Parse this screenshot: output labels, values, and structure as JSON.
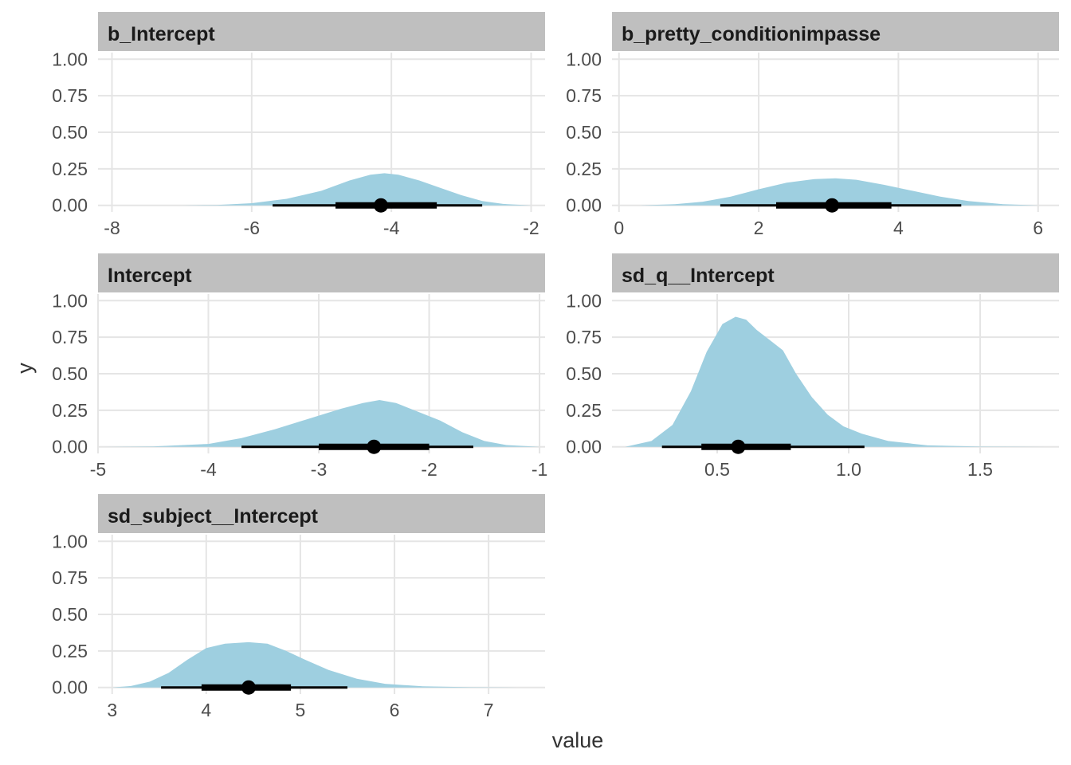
{
  "axis_titles": {
    "x": "value",
    "y": "y"
  },
  "colors": {
    "density_fill": "#9ecfe0",
    "strip_bg": "#bfbfbf",
    "grid": "#e5e5e5",
    "interval": "#000000"
  },
  "chart_data": [
    {
      "type": "area",
      "title": "b_Intercept",
      "xlim": [
        -8.2,
        -1.8
      ],
      "ylim": [
        0,
        1.0
      ],
      "xticks": [
        -8,
        -6,
        -4,
        -2
      ],
      "xtick_labels": [
        "-8",
        "-6",
        "-4",
        "-2"
      ],
      "yticks": [
        0,
        0.25,
        0.5,
        0.75,
        1.0
      ],
      "ytick_labels": [
        "0.00",
        "0.25",
        "0.50",
        "0.75",
        "1.00"
      ],
      "density": {
        "x": [
          -7.0,
          -6.5,
          -6.0,
          -5.5,
          -5.0,
          -4.6,
          -4.3,
          -4.1,
          -3.9,
          -3.6,
          -3.3,
          -3.0,
          -2.7,
          -2.4,
          -2.0
        ],
        "y": [
          0.0,
          0.003,
          0.015,
          0.045,
          0.1,
          0.17,
          0.21,
          0.22,
          0.21,
          0.17,
          0.12,
          0.07,
          0.03,
          0.01,
          0.0
        ]
      },
      "point": -4.15,
      "interval_inner": [
        -4.8,
        -3.35
      ],
      "interval_outer": [
        -5.7,
        -2.7
      ]
    },
    {
      "type": "area",
      "title": "b_pretty_conditionimpasse",
      "xlim": [
        -0.1,
        6.3
      ],
      "ylim": [
        0,
        1.0
      ],
      "xticks": [
        0,
        2,
        4,
        6
      ],
      "xtick_labels": [
        "0",
        "2",
        "4",
        "6"
      ],
      "yticks": [
        0,
        0.25,
        0.5,
        0.75,
        1.0
      ],
      "ytick_labels": [
        "0.00",
        "0.25",
        "0.50",
        "0.75",
        "1.00"
      ],
      "density": {
        "x": [
          0.3,
          0.8,
          1.2,
          1.6,
          2.0,
          2.4,
          2.8,
          3.1,
          3.4,
          3.8,
          4.2,
          4.6,
          5.0,
          5.5,
          6.0
        ],
        "y": [
          0.0,
          0.008,
          0.025,
          0.06,
          0.11,
          0.155,
          0.18,
          0.185,
          0.175,
          0.14,
          0.1,
          0.06,
          0.03,
          0.008,
          0.0
        ]
      },
      "point": 3.05,
      "interval_inner": [
        2.25,
        3.9
      ],
      "interval_outer": [
        1.45,
        4.9
      ]
    },
    {
      "type": "area",
      "title": "Intercept",
      "xlim": [
        -5.0,
        -0.95
      ],
      "ylim": [
        0,
        1.0
      ],
      "xticks": [
        -5,
        -4,
        -3,
        -2,
        -1
      ],
      "xtick_labels": [
        "-5",
        "-4",
        "-3",
        "-2",
        "-1"
      ],
      "density": {
        "x": [
          -4.95,
          -4.5,
          -4.0,
          -3.7,
          -3.4,
          -3.1,
          -2.8,
          -2.6,
          -2.45,
          -2.3,
          -2.1,
          -1.9,
          -1.7,
          -1.5,
          -1.3,
          -1.0
        ],
        "y": [
          0.0,
          0.003,
          0.02,
          0.06,
          0.12,
          0.19,
          0.26,
          0.3,
          0.32,
          0.3,
          0.24,
          0.18,
          0.1,
          0.04,
          0.012,
          0.0
        ]
      },
      "yticks": [
        0,
        0.25,
        0.5,
        0.75,
        1.0
      ],
      "ytick_labels": [
        "0.00",
        "0.25",
        "0.50",
        "0.75",
        "1.00"
      ],
      "point": -2.5,
      "interval_inner": [
        -3.0,
        -2.0
      ],
      "interval_outer": [
        -3.7,
        -1.6
      ]
    },
    {
      "type": "area",
      "title": "sd_q__Intercept",
      "xlim": [
        0.1,
        1.8
      ],
      "ylim": [
        0,
        1.0
      ],
      "xticks": [
        0.5,
        1.0,
        1.5
      ],
      "xtick_labels": [
        "0.5",
        "1.0",
        "1.5"
      ],
      "yticks": [
        0,
        0.25,
        0.5,
        0.75,
        1.0
      ],
      "ytick_labels": [
        "0.00",
        "0.25",
        "0.50",
        "0.75",
        "1.00"
      ],
      "density": {
        "x": [
          0.15,
          0.25,
          0.33,
          0.4,
          0.46,
          0.52,
          0.57,
          0.61,
          0.65,
          0.7,
          0.75,
          0.8,
          0.86,
          0.92,
          0.98,
          1.05,
          1.15,
          1.3,
          1.5,
          1.75
        ],
        "y": [
          0.0,
          0.04,
          0.15,
          0.38,
          0.65,
          0.84,
          0.89,
          0.87,
          0.8,
          0.73,
          0.66,
          0.5,
          0.34,
          0.22,
          0.14,
          0.09,
          0.04,
          0.01,
          0.002,
          0.0
        ]
      },
      "point": 0.58,
      "interval_inner": [
        0.44,
        0.78
      ],
      "interval_outer": [
        0.29,
        1.06
      ]
    },
    {
      "type": "area",
      "title": "sd_subject__Intercept",
      "xlim": [
        2.85,
        7.6
      ],
      "ylim": [
        0,
        1.0
      ],
      "xticks": [
        3,
        4,
        5,
        6,
        7
      ],
      "xtick_labels": [
        "3",
        "4",
        "5",
        "6",
        "7"
      ],
      "yticks": [
        0,
        0.25,
        0.5,
        0.75,
        1.0
      ],
      "ytick_labels": [
        "0.00",
        "0.25",
        "0.50",
        "0.75",
        "1.00"
      ],
      "density": {
        "x": [
          3.0,
          3.2,
          3.4,
          3.6,
          3.8,
          4.0,
          4.2,
          4.45,
          4.65,
          4.85,
          5.05,
          5.3,
          5.6,
          5.9,
          6.3,
          6.8,
          7.3
        ],
        "y": [
          0.0,
          0.01,
          0.04,
          0.1,
          0.19,
          0.27,
          0.3,
          0.31,
          0.3,
          0.25,
          0.19,
          0.12,
          0.06,
          0.025,
          0.008,
          0.002,
          0.0
        ]
      },
      "point": 4.45,
      "interval_inner": [
        3.95,
        4.9
      ],
      "interval_outer": [
        3.52,
        5.5
      ]
    }
  ]
}
